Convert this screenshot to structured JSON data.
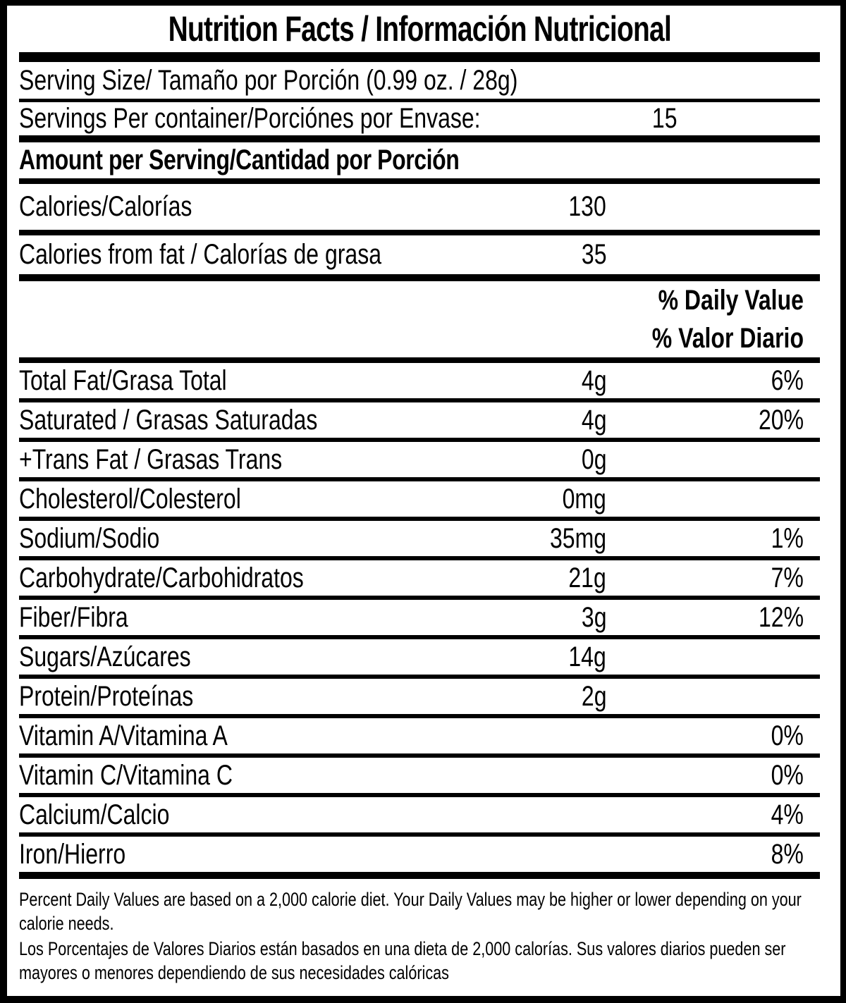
{
  "title": "Nutrition Facts / Información Nutricional",
  "serving": {
    "size_label": "Serving Size/ Tamaño por Porción  (0.99 oz. / 28g)",
    "per_container_label": "Servings Per container/Porciónes por Envase:",
    "per_container_value": "15"
  },
  "amount_per_serving_header": "Amount per Serving/Cantidad por Porción",
  "calories": {
    "label": "Calories/Calorías",
    "value": "130"
  },
  "calories_from_fat": {
    "label": "Calories from fat / Calorías de grasa",
    "value": "35"
  },
  "daily_value_header": {
    "line1": "% Daily Value",
    "line2": "% Valor Diario"
  },
  "nutrients": [
    {
      "label": "Total Fat/Grasa Total",
      "amount": "4g",
      "dv": "6%"
    },
    {
      "label": "Saturated / Grasas Saturadas",
      "amount": "4g",
      "dv": "20%"
    },
    {
      "label": "+Trans Fat / Grasas Trans",
      "amount": "0g",
      "dv": ""
    },
    {
      "label": "Cholesterol/Colesterol",
      "amount": "0mg",
      "dv": ""
    },
    {
      "label": "Sodium/Sodio",
      "amount": "35mg",
      "dv": "1%"
    },
    {
      "label": "Carbohydrate/Carbohidratos",
      "amount": "21g",
      "dv": "7%"
    },
    {
      "label": "Fiber/Fibra",
      "amount": "3g",
      "dv": "12%"
    },
    {
      "label": "Sugars/Azúcares",
      "amount": "14g",
      "dv": ""
    },
    {
      "label": "Protein/Proteínas",
      "amount": "2g",
      "dv": ""
    },
    {
      "label": "Vitamin A/Vitamina A",
      "amount": "",
      "dv": "0%"
    },
    {
      "label": "Vitamin C/Vitamina C",
      "amount": "",
      "dv": "0%"
    },
    {
      "label": "Calcium/Calcio",
      "amount": "",
      "dv": "4%"
    },
    {
      "label": "Iron/Hierro",
      "amount": "",
      "dv": "8%"
    }
  ],
  "footnotes": {
    "english": "Percent Daily Values are based on a 2,000 calorie diet. Your Daily Values may be higher or lower depending on your calorie needs.",
    "spanish": "Los Porcentajes de Valores Diarios están basados en una dieta de 2,000 calorías. Sus valores diarios pueden ser mayores o menores dependiendo de sus necesidades calóricas"
  },
  "colors": {
    "text": "#000000",
    "background": "#ffffff"
  }
}
